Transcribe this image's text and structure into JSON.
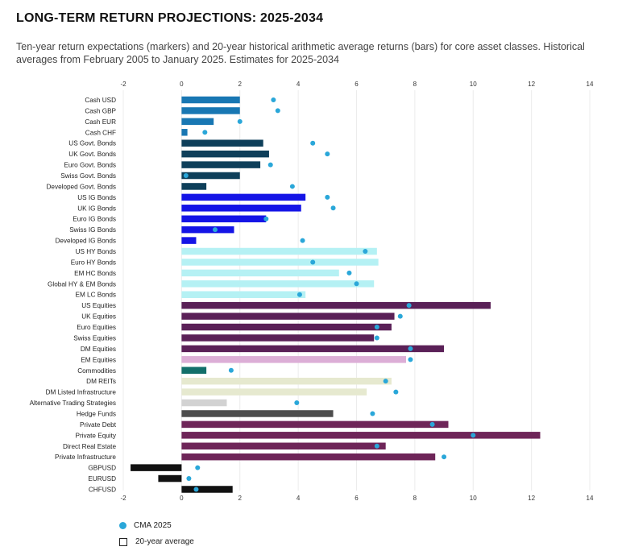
{
  "title": "LONG-TERM RETURN PROJECTIONS: 2025-2034",
  "subtitle": "Ten-year return expectations (markers) and 20-year historical arithmetic average returns (bars) for core asset classes. Historical averages from February 2005 to January 2025. Estimates for 2025-2034",
  "legend": {
    "marker_label": "CMA 2025",
    "bar_label": "20-year average",
    "marker_color": "#2aa7d9"
  },
  "chart_data": {
    "type": "bar",
    "orientation": "horizontal",
    "xlim": [
      -2,
      14
    ],
    "xticks": [
      -2,
      0,
      2,
      4,
      6,
      8,
      10,
      12,
      14
    ],
    "grid": true,
    "legend_position": "bottom-left",
    "series": [
      {
        "name": "20-year average",
        "type": "bar"
      },
      {
        "name": "CMA 2025",
        "type": "marker"
      }
    ],
    "categories": [
      "Cash USD",
      "Cash GBP",
      "Cash EUR",
      "Cash CHF",
      "US Govt. Bonds",
      "UK Govt. Bonds",
      "Euro Govt. Bonds",
      "Swiss Govt. Bonds",
      "Developed Govt. Bonds",
      "US IG Bonds",
      "UK IG Bonds",
      "Euro IG Bonds",
      "Swiss IG Bonds",
      "Developed IG Bonds",
      "US HY Bonds",
      "Euro HY Bonds",
      "EM HC Bonds",
      "Global HY & EM Bonds",
      "EM LC Bonds",
      "US Equities",
      "UK Equities",
      "Euro Equities",
      "Swiss Equities",
      "DM Equities",
      "EM Equities",
      "Commodities",
      "DM REITs",
      "DM Listed Infrastructure",
      "Alternative Trading Strategies",
      "Hedge Funds",
      "Private Debt",
      "Private Equity",
      "Direct Real Estate",
      "Private Infrastructure",
      "GBPUSD",
      "EURUSD",
      "CHFUSD"
    ],
    "bar_values": [
      2.0,
      2.0,
      1.1,
      0.2,
      2.8,
      3.0,
      2.7,
      2.0,
      0.85,
      4.25,
      4.1,
      2.9,
      1.8,
      0.5,
      6.7,
      6.75,
      5.4,
      6.6,
      4.25,
      10.6,
      7.3,
      7.2,
      6.6,
      9.0,
      7.7,
      0.85,
      7.2,
      6.35,
      1.55,
      5.2,
      9.15,
      12.3,
      7.0,
      8.7,
      -1.75,
      -0.8,
      1.75
    ],
    "marker_values": [
      3.15,
      3.3,
      2.0,
      0.8,
      4.5,
      5.0,
      3.05,
      0.15,
      3.8,
      5.0,
      5.2,
      2.9,
      1.15,
      4.15,
      6.3,
      4.5,
      5.75,
      6.0,
      4.05,
      7.8,
      7.5,
      6.7,
      6.7,
      7.85,
      7.85,
      1.7,
      7.0,
      7.35,
      3.95,
      6.55,
      8.6,
      10.0,
      6.7,
      9.0,
      0.55,
      0.25,
      0.5
    ],
    "bar_colors": [
      "#1877b3",
      "#1877b3",
      "#1877b3",
      "#1877b3",
      "#0e3f5a",
      "#0e3f5a",
      "#0e3f5a",
      "#0e3f5a",
      "#0e3f5a",
      "#1414e6",
      "#1414e6",
      "#1414e6",
      "#1414e6",
      "#1414e6",
      "#b5f1f4",
      "#b5f1f4",
      "#b5f1f4",
      "#b5f1f4",
      "#b5f1f4",
      "#5a2057",
      "#5a2057",
      "#5a2057",
      "#5a2057",
      "#5a2057",
      "#dcaed6",
      "#126f6a",
      "#e6e9cf",
      "#e6e9cf",
      "#d2d2d2",
      "#4d4d4d",
      "#6e2558",
      "#6e2558",
      "#6e2558",
      "#6e2558",
      "#111111",
      "#111111",
      "#111111"
    ]
  }
}
